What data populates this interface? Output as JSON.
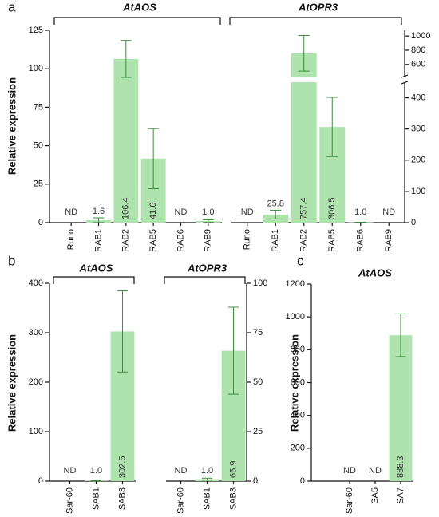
{
  "chart_data": [
    {
      "type": "bar",
      "panel": "a",
      "ylabel": "Relative expression",
      "color": "#aee3ae",
      "error_color": "#3d8b3d",
      "ylim": [
        0,
        125
      ],
      "yticks": [
        0,
        25,
        50,
        75,
        100,
        125
      ],
      "y2lim": [
        0,
        450
      ],
      "y2ticks": [
        0,
        100,
        200,
        300,
        400
      ],
      "y2lim_upper": [
        430,
        1080
      ],
      "y2ticks_upper": [
        600,
        800,
        1000
      ],
      "groups": [
        {
          "title": "AtAOS",
          "axis": "y",
          "categories": [
            "Runo",
            "RAB1",
            "RAB2",
            "RAB5",
            "RAB6",
            "RAB9"
          ],
          "values": [
            null,
            1.6,
            106.4,
            41.6,
            null,
            1.0
          ],
          "errors": [
            null,
            1.5,
            12,
            19.5,
            null,
            0.8
          ],
          "value_labels": [
            "ND",
            "1.6",
            "106.4",
            "41.6",
            "ND",
            "1.0"
          ]
        },
        {
          "title": "AtOPR3",
          "axis": "y2",
          "categories": [
            "Runo",
            "RAB1",
            "RAB2",
            "RAB5",
            "RAB6",
            "RAB9"
          ],
          "values": [
            null,
            25.8,
            757.4,
            306.5,
            1.0,
            null
          ],
          "errors": [
            null,
            14,
            250,
            95,
            0.5,
            null
          ],
          "value_labels": [
            "ND",
            "25.8",
            "757.4",
            "306.5",
            "1.0",
            "ND"
          ]
        }
      ]
    },
    {
      "type": "bar",
      "panel": "b",
      "ylabel": "Relative expression",
      "color": "#aee3ae",
      "error_color": "#3d8b3d",
      "ylim": [
        0,
        400
      ],
      "yticks": [
        0,
        100,
        200,
        300,
        400
      ],
      "y2lim": [
        0,
        100
      ],
      "y2ticks": [
        0,
        25,
        50,
        75,
        100
      ],
      "groups": [
        {
          "title": "AtAOS",
          "axis": "y",
          "categories": [
            "Sar-60",
            "SAB1",
            "SAB3"
          ],
          "values": [
            null,
            1.0,
            302.5
          ],
          "errors": [
            null,
            0.5,
            82
          ],
          "value_labels": [
            "ND",
            "1.0",
            "302.5"
          ]
        },
        {
          "title": "AtOPR3",
          "axis": "y2",
          "categories": [
            "Sar-60",
            "SAB1",
            "SAB3"
          ],
          "values": [
            null,
            1.0,
            65.9
          ],
          "errors": [
            null,
            0.5,
            22
          ],
          "value_labels": [
            "ND",
            "1.0",
            "65.9"
          ]
        }
      ]
    },
    {
      "type": "bar",
      "panel": "c",
      "ylabel": "Relative expression",
      "color": "#aee3ae",
      "error_color": "#3d8b3d",
      "ylim": [
        0,
        1200
      ],
      "yticks": [
        0,
        200,
        400,
        600,
        800,
        1000,
        1200
      ],
      "groups": [
        {
          "title": "AtAOS",
          "axis": "y",
          "categories": [
            "Sar-60",
            "SA5",
            "SA7"
          ],
          "values": [
            null,
            null,
            888.3
          ],
          "errors": [
            null,
            null,
            130
          ],
          "value_labels": [
            "ND",
            "ND",
            "888.3"
          ]
        }
      ]
    }
  ]
}
